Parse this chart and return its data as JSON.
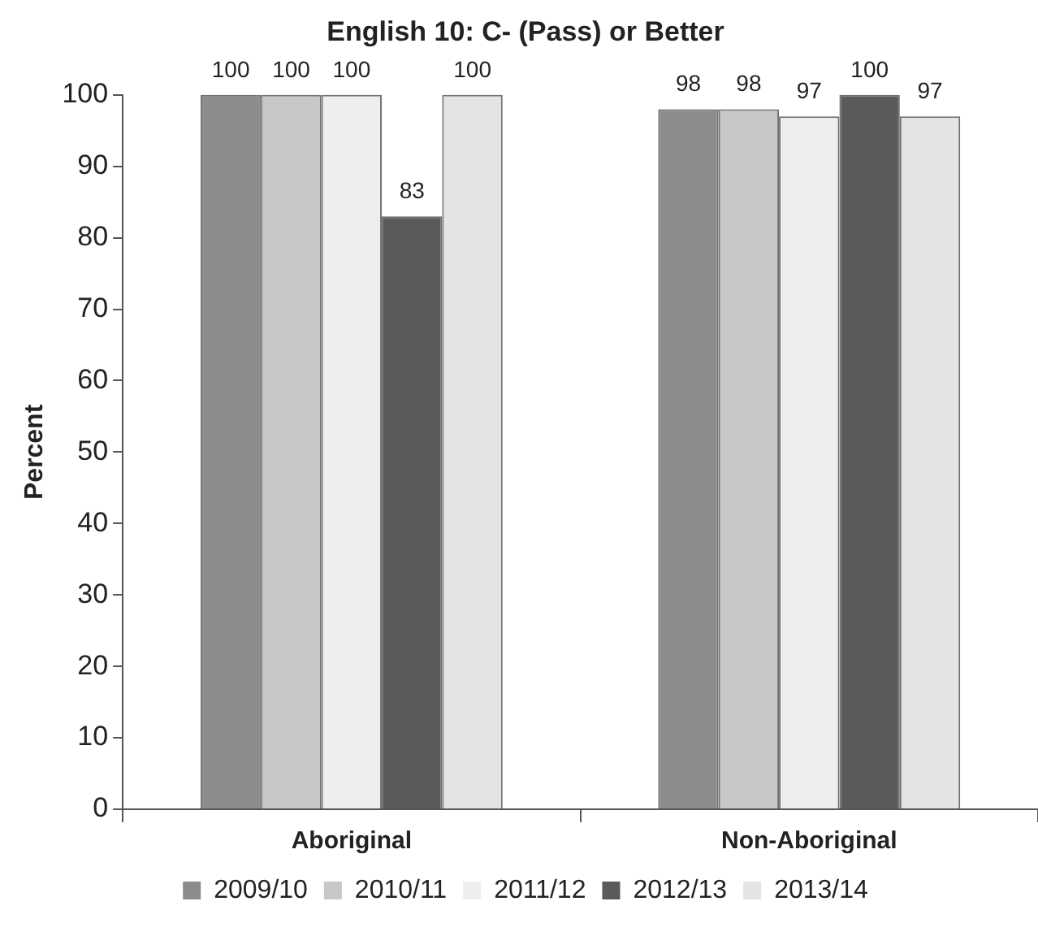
{
  "chart_data": {
    "type": "bar",
    "title": "English 10: C- (Pass) or Better",
    "ylabel": "Percent",
    "categories": [
      "Aboriginal",
      "Non-Aboriginal"
    ],
    "series": [
      {
        "name": "2009/10",
        "color": "#8c8c8c",
        "values": [
          100,
          98
        ]
      },
      {
        "name": "2010/11",
        "color": "#c8c8c8",
        "values": [
          100,
          98
        ]
      },
      {
        "name": "2011/12",
        "color": "#eeeeee",
        "values": [
          100,
          97
        ]
      },
      {
        "name": "2012/13",
        "color": "#5a5a5a",
        "values": [
          83,
          100
        ]
      },
      {
        "name": "2013/14",
        "color": "#e4e4e4",
        "values": [
          100,
          97
        ]
      }
    ],
    "ylim": [
      0,
      100
    ],
    "yticks": [
      0,
      10,
      20,
      30,
      40,
      50,
      60,
      70,
      80,
      90,
      100
    ],
    "grid": false,
    "legend": "bottom",
    "data_labels": true
  }
}
